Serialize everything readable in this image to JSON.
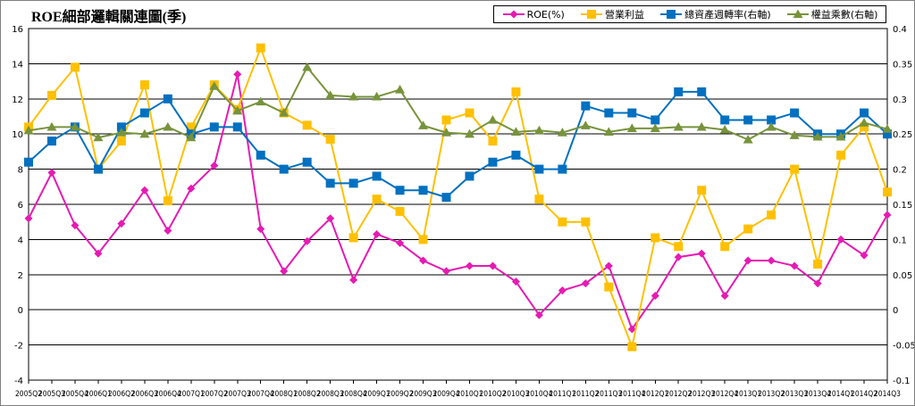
{
  "title": "ROE細部邏輯關連圖(季)",
  "chart_data": {
    "type": "line",
    "title": "ROE細部邏輯關連圖(季)",
    "legend_position": "top-right",
    "grid": true,
    "x": [
      "2005Q2",
      "2005Q3",
      "2005Q4",
      "2006Q1",
      "2006Q2",
      "2006Q3",
      "2006Q4",
      "2007Q1",
      "2007Q2",
      "2007Q3",
      "2007Q4",
      "2008Q1",
      "2008Q2",
      "2008Q3",
      "2008Q4",
      "2009Q1",
      "2009Q2",
      "2009Q3",
      "2009Q4",
      "2010Q1",
      "2010Q2",
      "2010Q3",
      "2010Q4",
      "2011Q1",
      "2011Q2",
      "2011Q3",
      "2011Q4",
      "2012Q1",
      "2012Q2",
      "2012Q3",
      "2012Q4",
      "2013Q1",
      "2013Q2",
      "2013Q3",
      "2013Q4",
      "2014Q1",
      "2014Q2",
      "2014Q3"
    ],
    "y_left": {
      "min": -4,
      "max": 16,
      "step": 2,
      "ticks": [
        "-4",
        "-2",
        "0",
        "2",
        "4",
        "6",
        "8",
        "10",
        "12",
        "14",
        "16"
      ]
    },
    "y_right": {
      "min": -0.1,
      "max": 0.4,
      "step": 0.05,
      "ticks": [
        "-0.1",
        "-0.05",
        "0",
        "0.05",
        "0.1",
        "0.15",
        "0.2",
        "0.25",
        "0.3",
        "0.35",
        "0.4"
      ]
    },
    "series": [
      {
        "name": "ROE(%)",
        "axis": "left",
        "color": "#e61ab4",
        "marker": "diamond",
        "values": [
          5.2,
          7.8,
          4.8,
          3.2,
          4.9,
          6.8,
          4.5,
          6.9,
          8.2,
          13.4,
          4.6,
          2.2,
          3.9,
          5.2,
          1.7,
          4.3,
          3.8,
          2.8,
          2.2,
          2.5,
          2.5,
          1.6,
          -0.3,
          1.1,
          1.5,
          2.5,
          -1.1,
          0.8,
          3.0,
          3.2,
          0.8,
          2.8,
          2.8,
          2.5,
          1.5,
          4.0,
          3.1,
          5.4
        ]
      },
      {
        "name": "營業利益",
        "axis": "left",
        "color": "#ffc000",
        "marker": "square",
        "values": [
          10.4,
          12.2,
          13.8,
          8.0,
          9.6,
          12.8,
          6.2,
          10.4,
          12.8,
          11.4,
          14.9,
          11.2,
          10.5,
          9.7,
          4.1,
          6.3,
          5.6,
          4.0,
          10.8,
          11.2,
          9.6,
          12.4,
          6.3,
          5.0,
          5.0,
          1.3,
          -2.1,
          4.1,
          3.6,
          6.8,
          3.6,
          4.6,
          5.4,
          8.0,
          2.6,
          8.8,
          10.4,
          6.7
        ]
      },
      {
        "name": "總資產週轉率(右軸)",
        "axis": "right",
        "color": "#0070c0",
        "marker": "square",
        "values": [
          0.21,
          0.24,
          0.26,
          0.2,
          0.26,
          0.28,
          0.3,
          0.25,
          0.26,
          0.26,
          0.22,
          0.2,
          0.21,
          0.18,
          0.18,
          0.19,
          0.17,
          0.17,
          0.16,
          0.19,
          0.21,
          0.22,
          0.2,
          0.2,
          0.29,
          0.28,
          0.28,
          0.27,
          0.31,
          0.31,
          0.27,
          0.27,
          0.27,
          0.28,
          0.25,
          0.25,
          0.28,
          0.25
        ]
      },
      {
        "name": "權益乘數(右軸)",
        "axis": "right",
        "color": "#77933c",
        "marker": "triangle",
        "values": [
          0.255,
          0.26,
          0.26,
          0.245,
          0.252,
          0.25,
          0.26,
          0.245,
          0.318,
          0.283,
          0.296,
          0.28,
          0.345,
          0.305,
          0.303,
          0.303,
          0.313,
          0.262,
          0.252,
          0.25,
          0.27,
          0.253,
          0.255,
          0.252,
          0.262,
          0.253,
          0.258,
          0.258,
          0.26,
          0.26,
          0.256,
          0.242,
          0.26,
          0.248,
          0.246,
          0.246,
          0.266,
          0.257
        ]
      }
    ]
  }
}
